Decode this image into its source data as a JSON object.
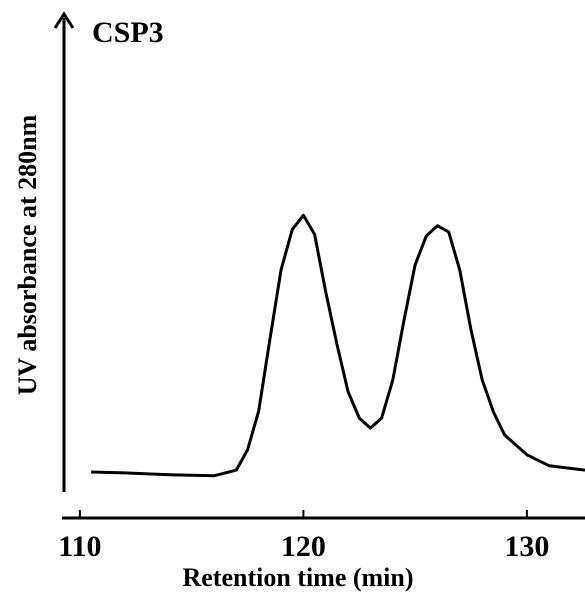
{
  "chart_data": {
    "type": "line",
    "title": "CSP3",
    "xlabel": "Retention time (min)",
    "ylabel": "UV absorbance at 280nm",
    "x": [
      110.5,
      112,
      114,
      116,
      117,
      117.5,
      118,
      118.5,
      119,
      119.5,
      120,
      120.5,
      121,
      121.5,
      122,
      122.5,
      123,
      123.5,
      124,
      124.5,
      125,
      125.5,
      126,
      126.5,
      127,
      127.5,
      128,
      128.5,
      129,
      130,
      131,
      132.6
    ],
    "series": [
      {
        "color": "#000000",
        "values": [
          4.2,
          4.0,
          3.6,
          3.4,
          4.6,
          8.8,
          17,
          32,
          46.5,
          55,
          58,
          54,
          42,
          31,
          21,
          15.5,
          13.4,
          15.5,
          23.5,
          36,
          47.6,
          53.7,
          55.8,
          54.5,
          46.5,
          34,
          23.5,
          16.8,
          12,
          7.8,
          5.5,
          4.6
        ]
      }
    ],
    "xlim": [
      109.2,
      132.6
    ],
    "xticks": [
      110,
      120,
      130
    ],
    "ylim": [
      0,
      100
    ]
  }
}
